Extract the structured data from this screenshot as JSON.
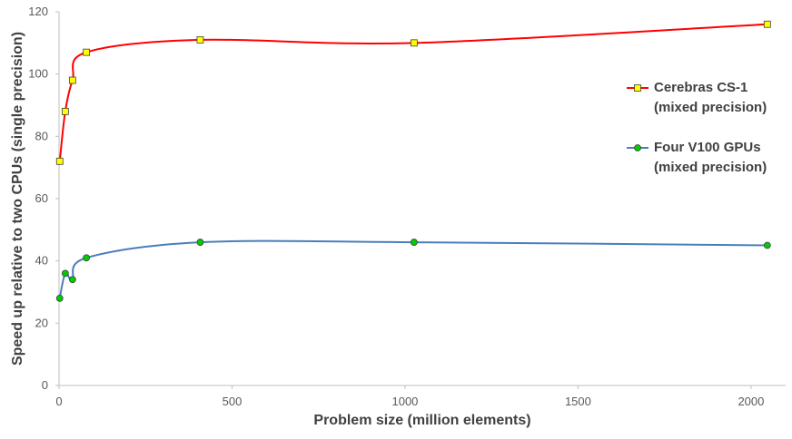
{
  "chart_data": {
    "type": "line",
    "x_label": "Problem size (million elements)",
    "y_label": "Speed up relative to two CPUs (single precision)",
    "xlim": [
      0,
      2100
    ],
    "xticks": [
      0,
      500,
      1000,
      1500,
      2000
    ],
    "ylim": [
      0,
      120
    ],
    "yticks": [
      0,
      20,
      40,
      60,
      80,
      100,
      120
    ],
    "grid": false,
    "legend": "right",
    "smooth": true,
    "series": [
      {
        "name": "Cerebras CS-1\n(mixed precision)",
        "color": "#ff0000",
        "marker": "square",
        "marker_color": "#ffff00",
        "x": [
          2,
          18,
          39,
          79,
          408,
          1026,
          2047
        ],
        "values": [
          72,
          88,
          98,
          107,
          111,
          110,
          116
        ]
      },
      {
        "name": "Four V100 GPUs\n(mixed precision)",
        "color": "#4a7ebb",
        "marker": "circle",
        "marker_color": "#00cc00",
        "x": [
          2,
          18,
          39,
          79,
          408,
          1026,
          2047
        ],
        "values": [
          28,
          36,
          34,
          41,
          46,
          46,
          45
        ]
      }
    ]
  }
}
